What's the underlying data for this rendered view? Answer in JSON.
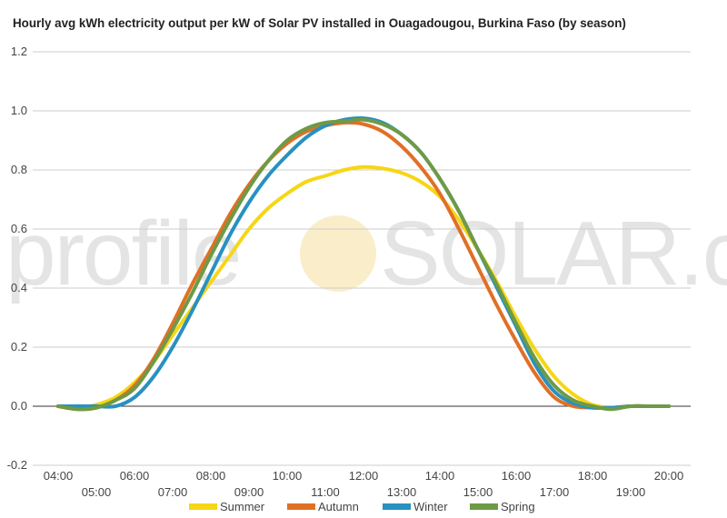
{
  "chart_data": {
    "type": "line",
    "title": "Hourly avg kWh electricity output per kW of Solar PV installed in Ouagadougou, Burkina Faso (by season)",
    "xlabel": "",
    "ylabel": "",
    "ylim": [
      -0.2,
      1.2
    ],
    "yticks": [
      "-0.2",
      "0.0",
      "0.2",
      "0.4",
      "0.6",
      "0.8",
      "1.0",
      "1.2"
    ],
    "xlim": [
      4,
      20
    ],
    "xticks": [
      "04:00",
      "05:00",
      "06:00",
      "07:00",
      "08:00",
      "09:00",
      "10:00",
      "11:00",
      "12:00",
      "13:00",
      "14:00",
      "15:00",
      "16:00",
      "17:00",
      "18:00",
      "19:00",
      "20:00"
    ],
    "grid": true,
    "legend": "bottom",
    "series": [
      {
        "name": "Summer",
        "color": "#f6d616",
        "x": [
          4,
          4.5,
          5,
          5.5,
          6,
          6.5,
          7,
          7.5,
          8,
          8.5,
          9,
          9.5,
          10,
          10.5,
          11,
          11.5,
          12,
          12.5,
          13,
          13.5,
          14,
          14.5,
          15,
          15.5,
          16,
          16.5,
          17,
          17.5,
          18,
          18.5,
          19,
          19.5,
          20
        ],
        "y": [
          0,
          -0.005,
          0.005,
          0.03,
          0.08,
          0.15,
          0.24,
          0.33,
          0.42,
          0.51,
          0.6,
          0.67,
          0.72,
          0.76,
          0.78,
          0.8,
          0.81,
          0.805,
          0.79,
          0.76,
          0.71,
          0.63,
          0.53,
          0.42,
          0.3,
          0.19,
          0.1,
          0.04,
          0.005,
          -0.005,
          0,
          0,
          0
        ]
      },
      {
        "name": "Autumn",
        "color": "#e07026",
        "x": [
          4,
          4.5,
          5,
          5.5,
          6,
          6.5,
          7,
          7.5,
          8,
          8.5,
          9,
          9.5,
          10,
          10.5,
          11,
          11.5,
          12,
          12.5,
          13,
          13.5,
          14,
          14.5,
          15,
          15.5,
          16,
          16.5,
          17,
          17.5,
          18,
          18.5,
          19,
          19.5,
          20
        ],
        "y": [
          0,
          -0.01,
          -0.005,
          0.02,
          0.07,
          0.16,
          0.28,
          0.41,
          0.53,
          0.65,
          0.75,
          0.83,
          0.89,
          0.93,
          0.95,
          0.96,
          0.955,
          0.93,
          0.88,
          0.81,
          0.72,
          0.6,
          0.47,
          0.34,
          0.22,
          0.11,
          0.03,
          0.0,
          -0.005,
          -0.005,
          0,
          0,
          0
        ]
      },
      {
        "name": "Winter",
        "color": "#2891c0",
        "x": [
          4,
          4.5,
          5,
          5.5,
          6,
          6.5,
          7,
          7.5,
          8,
          8.5,
          9,
          9.5,
          10,
          10.5,
          11,
          11.5,
          12,
          12.5,
          13,
          13.5,
          14,
          14.5,
          15,
          15.5,
          16,
          16.5,
          17,
          17.5,
          18,
          18.5,
          19,
          19.5,
          20
        ],
        "y": [
          0,
          0,
          0,
          0,
          0.03,
          0.1,
          0.2,
          0.32,
          0.45,
          0.58,
          0.69,
          0.78,
          0.85,
          0.91,
          0.95,
          0.97,
          0.975,
          0.96,
          0.92,
          0.86,
          0.77,
          0.66,
          0.53,
          0.4,
          0.27,
          0.14,
          0.05,
          0.01,
          -0.005,
          -0.005,
          0,
          0,
          0
        ]
      },
      {
        "name": "Spring",
        "color": "#6e9a45",
        "x": [
          4,
          4.5,
          5,
          5.5,
          6,
          6.5,
          7,
          7.5,
          8,
          8.5,
          9,
          9.5,
          10,
          10.5,
          11,
          11.5,
          12,
          12.5,
          13,
          13.5,
          14,
          14.5,
          15,
          15.5,
          16,
          16.5,
          17,
          17.5,
          18,
          18.5,
          19,
          19.5,
          20
        ],
        "y": [
          0,
          -0.01,
          -0.005,
          0.02,
          0.06,
          0.15,
          0.26,
          0.38,
          0.51,
          0.63,
          0.74,
          0.83,
          0.9,
          0.94,
          0.96,
          0.965,
          0.97,
          0.955,
          0.92,
          0.86,
          0.77,
          0.66,
          0.53,
          0.41,
          0.28,
          0.16,
          0.07,
          0.02,
          0.0,
          -0.01,
          0,
          0,
          0
        ]
      }
    ]
  },
  "watermark": {
    "left": "profile",
    "right": "SOLAR.com"
  }
}
